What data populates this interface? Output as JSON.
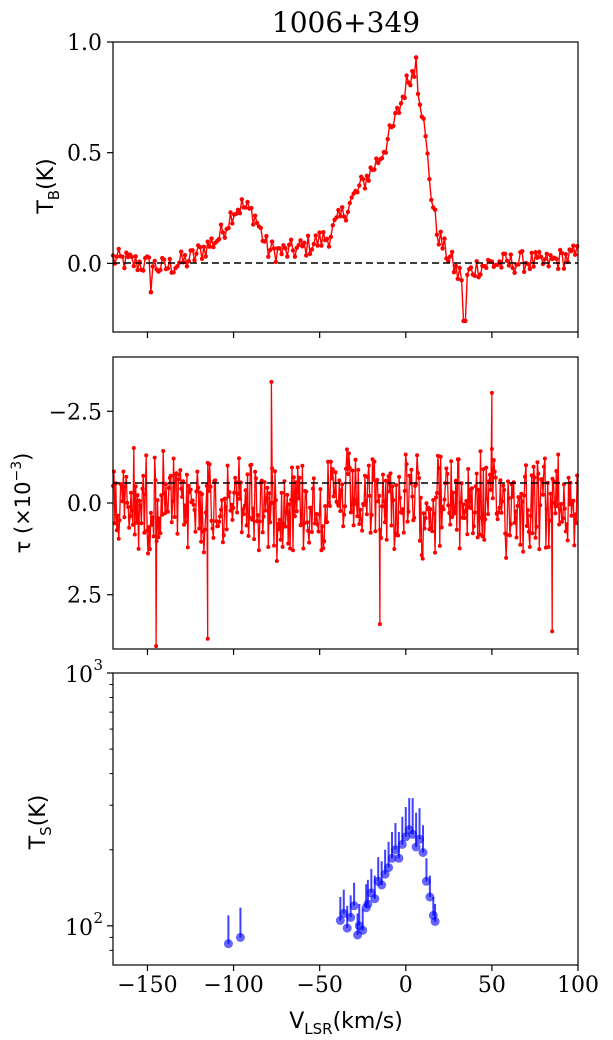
{
  "title": "1006+349",
  "x_axis": {
    "label_main": "V",
    "label_sub": "LSR",
    "label_unit": "(km/s)",
    "range": [
      -170,
      100
    ],
    "ticks": [
      -150,
      -100,
      -50,
      0,
      50,
      100
    ],
    "tick_labels": [
      "−150",
      "−100",
      "−50",
      "0",
      "50",
      "100"
    ]
  },
  "colors": {
    "tb_series": "#ff0000",
    "tau_series": "#ff0000",
    "ts_series": "#0000ff",
    "zero_line": "#000000"
  },
  "chart_data": [
    {
      "type": "line",
      "panel": "top",
      "ylabel_main": "T",
      "ylabel_sub": "B",
      "ylabel_unit": "(K)",
      "ylim": [
        -0.31,
        1.0
      ],
      "yticks": [
        0.0,
        0.5,
        1.0
      ],
      "ytick_labels": [
        "0.0",
        "0.5",
        "1.0"
      ],
      "reference_line": 0.0,
      "markers": "small dots",
      "profile": {
        "x": [
          -170,
          -140,
          -125,
          -108,
          -100,
          -95,
          -88,
          -80,
          -70,
          -60,
          -45,
          -35,
          -25,
          -15,
          -8,
          -3,
          0,
          3,
          6,
          9,
          12,
          15,
          18,
          22,
          26,
          30,
          35,
          40,
          50,
          60,
          70,
          80,
          90,
          100
        ],
        "y": [
          0.02,
          -0.02,
          0.02,
          0.12,
          0.24,
          0.26,
          0.22,
          0.06,
          0.05,
          0.07,
          0.12,
          0.24,
          0.36,
          0.48,
          0.6,
          0.72,
          0.8,
          0.86,
          0.85,
          0.72,
          0.52,
          0.3,
          0.15,
          0.07,
          0.02,
          -0.05,
          -0.06,
          -0.02,
          0.0,
          0.0,
          0.01,
          0.0,
          0.02,
          0.04
        ]
      },
      "noise_amplitude": 0.05,
      "highlights": [
        {
          "x": 6,
          "y": 0.93
        },
        {
          "x": 34,
          "y": -0.26
        },
        {
          "x": -148,
          "y": -0.13
        }
      ]
    },
    {
      "type": "line",
      "panel": "middle",
      "ylabel_main": "τ (×10",
      "ylabel_exp": "−3",
      "ylabel_close": ")",
      "ylim": [
        3.98,
        -3.98
      ],
      "y_inverted": true,
      "yticks": [
        -2.5,
        0.0,
        2.5
      ],
      "ytick_labels": [
        "−2.5",
        "0.0",
        "2.5"
      ],
      "reference_line": 0.0,
      "markers": "small dots",
      "center": 0.0,
      "noise_amplitude": 1.1,
      "highlights": [
        {
          "x": -145,
          "y": 3.9
        },
        {
          "x": -115,
          "y": 3.7
        },
        {
          "x": -78,
          "y": -3.3
        },
        {
          "x": -15,
          "y": 3.3
        },
        {
          "x": 85,
          "y": 3.5
        },
        {
          "x": 50,
          "y": -3.0
        }
      ]
    },
    {
      "type": "scatter",
      "panel": "bottom",
      "ylabel_main": "T",
      "ylabel_sub": "S",
      "ylabel_unit": "(K)",
      "yscale": "log",
      "ylim": [
        70,
        1000
      ],
      "yticks": [
        100,
        1000
      ],
      "ytick_labels_base": [
        "10",
        "10"
      ],
      "ytick_labels_exp": [
        "2",
        "3"
      ],
      "error_bars": true,
      "points": {
        "x": [
          -103,
          -96,
          -38,
          -36,
          -34,
          -32,
          -30,
          -28,
          -27,
          -25,
          -23,
          -22,
          -20,
          -18,
          -16,
          -14,
          -12,
          -10,
          -8,
          -6,
          -4,
          -2,
          0,
          2,
          4,
          6,
          8,
          10,
          12,
          14,
          16,
          17
        ],
        "y": [
          85,
          90,
          105,
          112,
          98,
          108,
          120,
          92,
          100,
          96,
          118,
          122,
          135,
          128,
          150,
          145,
          160,
          170,
          185,
          200,
          185,
          210,
          225,
          240,
          230,
          205,
          220,
          195,
          150,
          130,
          110,
          104
        ],
        "err": [
          25,
          28,
          25,
          27,
          22,
          24,
          28,
          20,
          22,
          21,
          28,
          30,
          33,
          30,
          37,
          35,
          40,
          45,
          50,
          55,
          50,
          60,
          70,
          80,
          90,
          75,
          72,
          55,
          35,
          28,
          20,
          18
        ]
      }
    }
  ]
}
